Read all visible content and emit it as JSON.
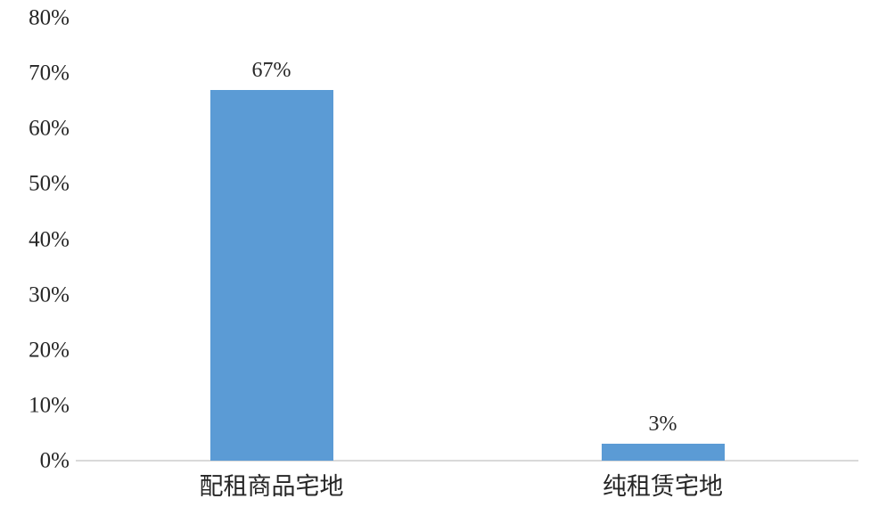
{
  "chart_data": {
    "type": "bar",
    "categories": [
      "配租商品宅地",
      "纯租赁宅地"
    ],
    "values": [
      67,
      3
    ],
    "data_labels": [
      "67%",
      "3%"
    ],
    "y_ticks": [
      {
        "value": 0,
        "label": "0%"
      },
      {
        "value": 10,
        "label": "10%"
      },
      {
        "value": 20,
        "label": "20%"
      },
      {
        "value": 30,
        "label": "30%"
      },
      {
        "value": 40,
        "label": "40%"
      },
      {
        "value": 50,
        "label": "50%"
      },
      {
        "value": 60,
        "label": "60%"
      },
      {
        "value": 70,
        "label": "70%"
      },
      {
        "value": 80,
        "label": "80%"
      }
    ],
    "title": "",
    "xlabel": "",
    "ylabel": "",
    "ylim": [
      0,
      80
    ],
    "grid": false,
    "legend": "none",
    "colors": {
      "bar": "#5b9bd5",
      "axis_line": "#d9d9d9",
      "text": "#262626",
      "background": "#ffffff"
    }
  }
}
